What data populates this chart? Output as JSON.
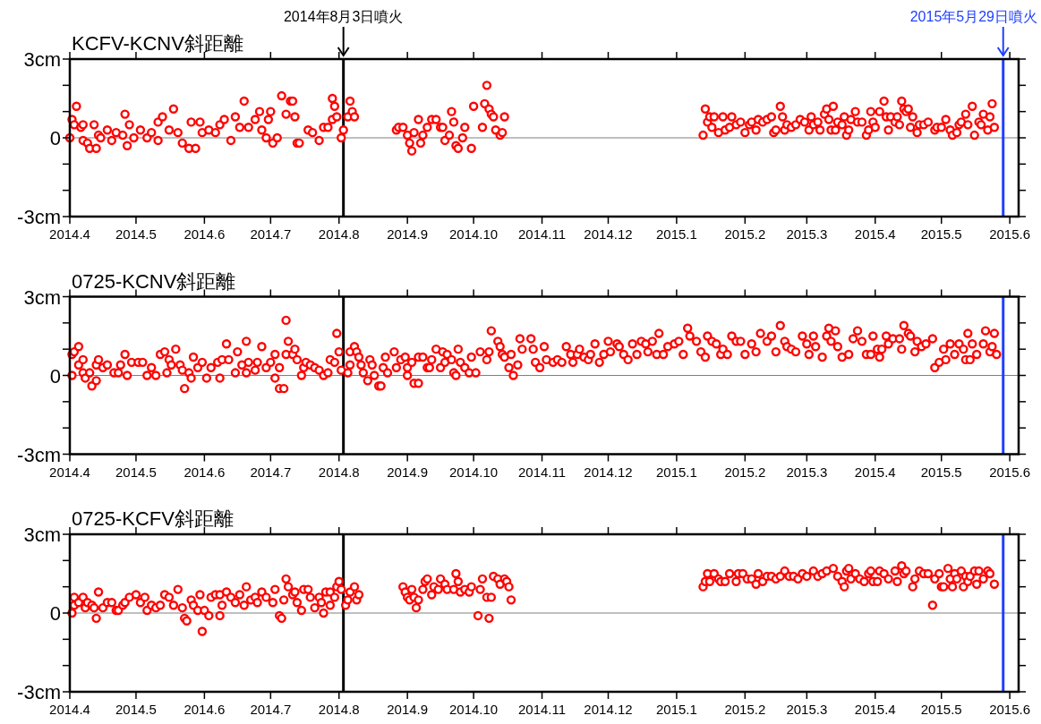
{
  "chart_data": [
    {
      "type": "scatter",
      "title": "KCFV-KCNV斜距離",
      "marker": "circle",
      "x": [
        "2014-04-01",
        "2014-04-02",
        "2014-04-03",
        "2014-04-04",
        "2014-04-06",
        "2014-04-07",
        "2014-04-07",
        "2014-04-09",
        "2014-04-10",
        "2014-04-12",
        "2014-04-13",
        "2014-04-14",
        "2014-04-15",
        "2014-04-18",
        "2014-04-20",
        "2014-04-22",
        "2014-04-25",
        "2014-04-26",
        "2014-04-27",
        "2014-04-28",
        "2014-04-30",
        "2014-05-03",
        "2014-05-06",
        "2014-05-08",
        "2014-05-11",
        "2014-05-11",
        "2014-05-13",
        "2014-05-16",
        "2014-05-18",
        "2014-05-20",
        "2014-05-22",
        "2014-05-25",
        "2014-05-26",
        "2014-05-28",
        "2014-05-30",
        "2014-05-31",
        "2014-06-03",
        "2014-06-06",
        "2014-06-08",
        "2014-06-10",
        "2014-06-13",
        "2014-06-15",
        "2014-06-17",
        "2014-06-19",
        "2014-06-21",
        "2014-06-24",
        "2014-06-26",
        "2014-06-27",
        "2014-06-29",
        "2014-06-30",
        "2014-07-01",
        "2014-07-02",
        "2014-07-04",
        "2014-07-06",
        "2014-07-08",
        "2014-07-10",
        "2014-07-11",
        "2014-07-12",
        "2014-07-13",
        "2014-07-14",
        "2014-07-18",
        "2014-07-20",
        "2014-07-23",
        "2014-07-25",
        "2014-07-27",
        "2014-07-29",
        "2014-07-29",
        "2014-07-30",
        "2014-07-31",
        "2014-08-02",
        "2014-08-03",
        "2014-08-05",
        "2014-08-06",
        "2014-08-07",
        "2014-08-08",
        "2014-08-27",
        "2014-08-28",
        "2014-08-30",
        "2014-09-01",
        "2014-09-02",
        "2014-09-03",
        "2014-09-04",
        "2014-09-06",
        "2014-09-07",
        "2014-09-08",
        "2014-09-10",
        "2014-09-12",
        "2014-09-14",
        "2014-09-16",
        "2014-09-17",
        "2014-09-18",
        "2014-09-20",
        "2014-09-21",
        "2014-09-22",
        "2014-09-23",
        "2014-09-24",
        "2014-09-26",
        "2014-09-27",
        "2014-09-30",
        "2014-10-01",
        "2014-10-05",
        "2014-10-06",
        "2014-10-07",
        "2014-10-08",
        "2014-10-09",
        "2014-10-10",
        "2014-10-11",
        "2014-10-13",
        "2014-10-14",
        "2014-10-15",
        "2015-01-13",
        "2015-01-14",
        "2015-01-15",
        "2015-01-16",
        "2015-01-17",
        "2015-01-18",
        "2015-01-20",
        "2015-01-22",
        "2015-01-23",
        "2015-01-25",
        "2015-01-26",
        "2015-01-28",
        "2015-01-30",
        "2015-02-01",
        "2015-02-03",
        "2015-02-04",
        "2015-02-06",
        "2015-02-07",
        "2015-02-09",
        "2015-02-11",
        "2015-02-13",
        "2015-02-14",
        "2015-02-15",
        "2015-02-17",
        "2015-02-18",
        "2015-02-19",
        "2015-02-20",
        "2015-02-22",
        "2015-02-24",
        "2015-02-26",
        "2015-02-28",
        "2015-03-02",
        "2015-03-03",
        "2015-03-04",
        "2015-03-06",
        "2015-03-07",
        "2015-03-09",
        "2015-03-10",
        "2015-03-11",
        "2015-03-12",
        "2015-03-13",
        "2015-03-14",
        "2015-03-15",
        "2015-03-17",
        "2015-03-18",
        "2015-03-19",
        "2015-03-20",
        "2015-03-21",
        "2015-03-23",
        "2015-03-24",
        "2015-03-26",
        "2015-03-28",
        "2015-03-29",
        "2015-03-30",
        "2015-03-31",
        "2015-04-01",
        "2015-04-03",
        "2015-04-05",
        "2015-04-06",
        "2015-04-07",
        "2015-04-08",
        "2015-04-10",
        "2015-04-11",
        "2015-04-12",
        "2015-04-13",
        "2015-04-14",
        "2015-04-15",
        "2015-04-16",
        "2015-04-17",
        "2015-04-18",
        "2015-04-20",
        "2015-04-21",
        "2015-04-23",
        "2015-04-25",
        "2015-04-28",
        "2015-04-29",
        "2015-05-01",
        "2015-05-03",
        "2015-05-05",
        "2015-05-06",
        "2015-05-08",
        "2015-05-09",
        "2015-05-10",
        "2015-05-12",
        "2015-05-13",
        "2015-05-15",
        "2015-05-16",
        "2015-05-18",
        "2015-05-19",
        "2015-05-20",
        "2015-05-22",
        "2015-05-23",
        "2015-05-24",
        "2015-05-25"
      ],
      "series": [
        {
          "color": "#ff0000",
          "values": [
            0.0,
            0.7,
            0.5,
            1.2,
            0.4,
            0.5,
            -0.1,
            -0.2,
            -0.4,
            0.5,
            -0.4,
            0.1,
            0.0,
            0.3,
            -0.1,
            0.2,
            0.1,
            0.9,
            -0.3,
            0.5,
            0.0,
            0.3,
            0.0,
            0.2,
            0.6,
            -0.1,
            0.8,
            0.3,
            1.1,
            0.2,
            -0.2,
            -0.4,
            0.6,
            -0.4,
            0.6,
            0.2,
            0.3,
            0.2,
            0.5,
            0.7,
            -0.1,
            0.8,
            0.4,
            1.4,
            0.4,
            0.7,
            1.0,
            0.3,
            0.0,
            0.7,
            1.0,
            -0.2,
            0.0,
            1.6,
            0.9,
            1.4,
            1.4,
            0.8,
            -0.2,
            -0.2,
            0.3,
            0.2,
            -0.1,
            0.4,
            0.4,
            0.7,
            1.5,
            1.2,
            0.8,
            0.0,
            0.3,
            0.8,
            1.4,
            1.0,
            0.8,
            0.3,
            0.4,
            0.4,
            0.1,
            -0.2,
            -0.5,
            0.2,
            0.7,
            -0.2,
            0.1,
            0.4,
            0.7,
            0.7,
            0.4,
            0.4,
            -0.1,
            0.1,
            1.0,
            0.6,
            -0.3,
            -0.4,
            0.0,
            0.4,
            -0.4,
            1.2,
            0.4,
            1.3,
            2.0,
            1.1,
            0.9,
            0.8,
            0.3,
            0.1,
            0.2,
            0.8,
            0.1,
            1.1,
            0.6,
            0.8,
            0.4,
            0.8,
            0.2,
            0.8,
            0.3,
            0.4,
            0.8,
            0.5,
            0.6,
            0.2,
            0.5,
            0.6,
            0.3,
            0.7,
            0.6,
            0.7,
            0.8,
            0.2,
            0.3,
            1.2,
            0.8,
            0.3,
            0.5,
            0.4,
            0.5,
            0.7,
            0.6,
            0.3,
            0.8,
            0.5,
            0.6,
            0.3,
            0.9,
            1.1,
            0.7,
            0.3,
            1.2,
            0.3,
            0.6,
            0.5,
            0.8,
            0.1,
            0.3,
            0.7,
            1.0,
            0.6,
            0.6,
            0.1,
            0.3,
            1.0,
            0.6,
            0.4,
            1.0,
            1.4,
            0.8,
            0.3,
            0.8,
            0.6,
            0.8,
            0.5,
            1.4,
            1.1,
            1.0,
            1.1,
            0.4,
            0.8,
            0.2,
            0.5,
            0.5,
            0.6,
            0.3,
            0.4,
            0.4,
            0.7,
            0.3,
            0.1,
            0.2,
            0.5,
            0.6,
            0.9,
            0.5,
            1.2,
            0.1,
            0.6,
            0.5,
            0.9,
            0.3,
            0.8,
            1.3,
            0.4
          ]
        }
      ],
      "xlim": [
        "2014-04-01",
        "2015-06-05"
      ],
      "xticks": [
        {
          "value": "2014-04-01",
          "label": "2014.4"
        },
        {
          "value": "2014-05-01",
          "label": "2014.5"
        },
        {
          "value": "2014-06-01",
          "label": "2014.6"
        },
        {
          "value": "2014-07-01",
          "label": "2014.7"
        },
        {
          "value": "2014-08-01",
          "label": "2014.8"
        },
        {
          "value": "2014-09-01",
          "label": "2014.9"
        },
        {
          "value": "2014-10-01",
          "label": "2014.10"
        },
        {
          "value": "2014-11-01",
          "label": "2014.11"
        },
        {
          "value": "2014-12-01",
          "label": "2014.12"
        },
        {
          "value": "2015-01-01",
          "label": "2015.1"
        },
        {
          "value": "2015-02-01",
          "label": "2015.2"
        },
        {
          "value": "2015-03-01",
          "label": "2015.3"
        },
        {
          "value": "2015-04-01",
          "label": "2015.4"
        },
        {
          "value": "2015-05-01",
          "label": "2015.5"
        },
        {
          "value": "2015-06-01",
          "label": "2015.6"
        }
      ],
      "ylim": [
        -3,
        3
      ],
      "yticks": [
        {
          "value": -3,
          "label": "-3cm"
        },
        {
          "value": -2,
          "label": null
        },
        {
          "value": -1,
          "label": null
        },
        {
          "value": 0,
          "label": "0"
        },
        {
          "value": 1,
          "label": null
        },
        {
          "value": 2,
          "label": null
        },
        {
          "value": 3,
          "label": "3cm"
        }
      ],
      "ref_lines": [
        {
          "axis": "y",
          "value": 0,
          "color": "#808080"
        },
        {
          "axis": "x",
          "value": "2014-08-03",
          "label": "2014年8月3日噴火",
          "color": "#000000"
        },
        {
          "axis": "x",
          "value": "2015-05-29",
          "label": "2015年5月29日噴火",
          "color": "#1f3fff"
        }
      ]
    },
    {
      "type": "scatter",
      "title": "0725-KCNV斜距離",
      "marker": "circle",
      "x": [
        "2014-04-02",
        "2014-04-02",
        "2014-04-03",
        "2014-04-05",
        "2014-04-05",
        "2014-04-07",
        "2014-04-07",
        "2014-04-08",
        "2014-04-10",
        "2014-04-11",
        "2014-04-13",
        "2014-04-13",
        "2014-04-14",
        "2014-04-16",
        "2014-04-18",
        "2014-04-21",
        "2014-04-23",
        "2014-04-24",
        "2014-04-26",
        "2014-04-27",
        "2014-04-29",
        "2014-05-02",
        "2014-05-04",
        "2014-05-06",
        "2014-05-08",
        "2014-05-10",
        "2014-05-12",
        "2014-05-14",
        "2014-05-15",
        "2014-05-16",
        "2014-05-17",
        "2014-05-19",
        "2014-05-21",
        "2014-05-22",
        "2014-05-23",
        "2014-05-25",
        "2014-05-26",
        "2014-05-27",
        "2014-05-29",
        "2014-05-31",
        "2014-06-02",
        "2014-06-04",
        "2014-06-07",
        "2014-06-08",
        "2014-06-09",
        "2014-06-11",
        "2014-06-12",
        "2014-06-15",
        "2014-06-16",
        "2014-06-18",
        "2014-06-20",
        "2014-06-20",
        "2014-06-21",
        "2014-06-24",
        "2014-06-25",
        "2014-06-27",
        "2014-06-29",
        "2014-07-01",
        "2014-07-03",
        "2014-07-03",
        "2014-07-05",
        "2014-07-05",
        "2014-07-07",
        "2014-07-08",
        "2014-07-08",
        "2014-07-09",
        "2014-07-11",
        "2014-07-12",
        "2014-07-13",
        "2014-07-15",
        "2014-07-16",
        "2014-07-17",
        "2014-07-19",
        "2014-07-21",
        "2014-07-23",
        "2014-07-25",
        "2014-07-27",
        "2014-07-28",
        "2014-07-30",
        "2014-07-31",
        "2014-08-01",
        "2014-08-02",
        "2014-08-05",
        "2014-08-06",
        "2014-08-06",
        "2014-08-08",
        "2014-08-09",
        "2014-08-10",
        "2014-08-11",
        "2014-08-12",
        "2014-08-14",
        "2014-08-15",
        "2014-08-16",
        "2014-08-17",
        "2014-08-19",
        "2014-08-20",
        "2014-08-21",
        "2014-08-22",
        "2014-08-23",
        "2014-08-26",
        "2014-08-27",
        "2014-08-29",
        "2014-08-31",
        "2014-09-01",
        "2014-09-01",
        "2014-09-03",
        "2014-09-04",
        "2014-09-06",
        "2014-09-06",
        "2014-09-08",
        "2014-09-10",
        "2014-09-11",
        "2014-09-12",
        "2014-09-14",
        "2014-09-16",
        "2014-09-17",
        "2014-09-18",
        "2014-09-19",
        "2014-09-21",
        "2014-09-22",
        "2014-09-23",
        "2014-09-24",
        "2014-09-25",
        "2014-09-27",
        "2014-09-29",
        "2014-09-30",
        "2014-10-02",
        "2014-10-04",
        "2014-10-07",
        "2014-10-08",
        "2014-10-09",
        "2014-10-12",
        "2014-10-13",
        "2014-10-14",
        "2014-10-15",
        "2014-10-17",
        "2014-10-18",
        "2014-10-19",
        "2014-10-21",
        "2014-10-22",
        "2014-10-23",
        "2014-10-27",
        "2014-10-28",
        "2014-10-29",
        "2014-10-31",
        "2014-11-02",
        "2014-11-03",
        "2014-11-06",
        "2014-11-08",
        "2014-11-10",
        "2014-11-12",
        "2014-11-14",
        "2014-11-15",
        "2014-11-17",
        "2014-11-18",
        "2014-11-20",
        "2014-11-22",
        "2014-11-23",
        "2014-11-25",
        "2014-11-27",
        "2014-11-29",
        "2014-12-01",
        "2014-12-02",
        "2014-12-05",
        "2014-12-06",
        "2014-12-08",
        "2014-12-10",
        "2014-12-12",
        "2014-12-14",
        "2014-12-16",
        "2014-12-18",
        "2014-12-19",
        "2014-12-21",
        "2014-12-23",
        "2014-12-24",
        "2014-12-26",
        "2014-12-28",
        "2014-12-31",
        "2015-01-02",
        "2015-01-04",
        "2015-01-06",
        "2015-01-07",
        "2015-01-10",
        "2015-01-12",
        "2015-01-14",
        "2015-01-15",
        "2015-01-17",
        "2015-01-19",
        "2015-01-21",
        "2015-01-22",
        "2015-01-24",
        "2015-01-26",
        "2015-01-28",
        "2015-01-30",
        "2015-02-01",
        "2015-02-04",
        "2015-02-06",
        "2015-02-08",
        "2015-02-11",
        "2015-02-13",
        "2015-02-15",
        "2015-02-17",
        "2015-02-19",
        "2015-02-20",
        "2015-02-22",
        "2015-02-24",
        "2015-02-27",
        "2015-03-01",
        "2015-03-02",
        "2015-03-04",
        "2015-03-05",
        "2015-03-08",
        "2015-03-10",
        "2015-03-11",
        "2015-03-12",
        "2015-03-14",
        "2015-03-15",
        "2015-03-17",
        "2015-03-20",
        "2015-03-22",
        "2015-03-24",
        "2015-03-26",
        "2015-03-28",
        "2015-03-30",
        "2015-03-31",
        "2015-04-02",
        "2015-04-03",
        "2015-04-04",
        "2015-04-06",
        "2015-04-07",
        "2015-04-09",
        "2015-04-12",
        "2015-04-13",
        "2015-04-14",
        "2015-04-16",
        "2015-04-17",
        "2015-04-19",
        "2015-04-20",
        "2015-04-22",
        "2015-04-24",
        "2015-04-27",
        "2015-04-28",
        "2015-04-30",
        "2015-05-02",
        "2015-05-03",
        "2015-05-05",
        "2015-05-07",
        "2015-05-09",
        "2015-05-11",
        "2015-05-12",
        "2015-05-13",
        "2015-05-14",
        "2015-05-15",
        "2015-05-17",
        "2015-05-20",
        "2015-05-21",
        "2015-05-23",
        "2015-05-24",
        "2015-05-25",
        "2015-05-26"
      ],
      "series": [
        {
          "color": "#ff0000",
          "values": [
            0.0,
            0.8,
            0.9,
            1.1,
            0.4,
            0.6,
            0.1,
            -0.1,
            0.1,
            -0.4,
            0.4,
            -0.2,
            0.6,
            0.3,
            0.4,
            0.1,
            0.1,
            0.4,
            0.8,
            0.0,
            0.5,
            0.5,
            0.5,
            0.0,
            0.3,
            0.0,
            0.8,
            0.9,
            0.1,
            0.6,
            0.4,
            1.0,
            0.4,
            0.2,
            -0.5,
            0.1,
            -0.1,
            0.7,
            0.3,
            0.5,
            -0.1,
            0.3,
            0.5,
            -0.1,
            0.6,
            1.2,
            0.6,
            0.1,
            0.9,
            0.4,
            0.1,
            1.3,
            0.5,
            0.2,
            0.5,
            1.1,
            0.3,
            0.5,
            0.8,
            -0.1,
            0.3,
            -0.5,
            -0.5,
            2.1,
            0.8,
            1.3,
            0.8,
            1.0,
            0.6,
            0.0,
            0.3,
            0.5,
            0.4,
            0.3,
            0.2,
            0.0,
            0.1,
            0.6,
            0.5,
            1.6,
            0.9,
            0.2,
            0.1,
            0.4,
            0.9,
            1.1,
            0.9,
            0.7,
            0.4,
            0.1,
            -0.2,
            0.6,
            0.4,
            0.0,
            -0.4,
            -0.4,
            0.3,
            0.7,
            0.1,
            0.9,
            0.3,
            0.6,
            0.7,
            0.0,
            0.3,
            0.5,
            -0.3,
            -0.3,
            0.7,
            0.7,
            0.3,
            0.3,
            0.6,
            1.0,
            0.3,
            0.9,
            0.5,
            0.8,
            0.6,
            0.1,
            0.0,
            1.0,
            0.5,
            0.3,
            0.1,
            0.7,
            0.1,
            0.9,
            0.6,
            0.9,
            1.7,
            1.3,
            1.1,
            0.8,
            0.7,
            0.3,
            0.8,
            0.0,
            0.4,
            1.4,
            1.0,
            1.4,
            1.0,
            0.5,
            0.3,
            1.1,
            0.6,
            0.5,
            0.6,
            0.5,
            1.1,
            0.8,
            0.5,
            0.8,
            1.0,
            0.7,
            0.6,
            0.8,
            1.2,
            0.5,
            0.8,
            1.3,
            0.9,
            1.2,
            1.1,
            0.8,
            0.6,
            1.2,
            0.8,
            1.3,
            1.2,
            0.9,
            1.3,
            0.8,
            1.6,
            0.8,
            1.1,
            1.2,
            1.3,
            0.8,
            1.8,
            1.5,
            1.3,
            0.9,
            0.7,
            1.5,
            1.3,
            1.2,
            0.8,
            1.0,
            0.8,
            1.5,
            1.3,
            1.3,
            0.8,
            1.2,
            0.9,
            1.6,
            1.3,
            1.5,
            0.9,
            1.9,
            1.3,
            1.1,
            1.0,
            0.9,
            1.5,
            1.2,
            0.8,
            1.5,
            1.1,
            0.7,
            1.5,
            1.8,
            1.3,
            1.7,
            1.1,
            0.7,
            0.8,
            1.4,
            1.7,
            1.3,
            0.8,
            0.8,
            1.5,
            1.0,
            0.7,
            1.0,
            1.5,
            1.2,
            1.4,
            1.4,
            1.0,
            1.9,
            1.6,
            1.5,
            0.9,
            1.3,
            1.1,
            1.2,
            1.4,
            0.3,
            0.5,
            1.0,
            0.6,
            1.2,
            0.8,
            1.2,
            1.0,
            0.6,
            1.6,
            0.6,
            1.2,
            0.8,
            1.2,
            1.7,
            0.9,
            1.1,
            1.6,
            0.8
          ]
        }
      ],
      "xlim": [
        "2014-04-01",
        "2015-06-05"
      ],
      "xticks": [
        {
          "value": "2014-04-01",
          "label": "2014.4"
        },
        {
          "value": "2014-05-01",
          "label": "2014.5"
        },
        {
          "value": "2014-06-01",
          "label": "2014.6"
        },
        {
          "value": "2014-07-01",
          "label": "2014.7"
        },
        {
          "value": "2014-08-01",
          "label": "2014.8"
        },
        {
          "value": "2014-09-01",
          "label": "2014.9"
        },
        {
          "value": "2014-10-01",
          "label": "2014.10"
        },
        {
          "value": "2014-11-01",
          "label": "2014.11"
        },
        {
          "value": "2014-12-01",
          "label": "2014.12"
        },
        {
          "value": "2015-01-01",
          "label": "2015.1"
        },
        {
          "value": "2015-02-01",
          "label": "2015.2"
        },
        {
          "value": "2015-03-01",
          "label": "2015.3"
        },
        {
          "value": "2015-04-01",
          "label": "2015.4"
        },
        {
          "value": "2015-05-01",
          "label": "2015.5"
        },
        {
          "value": "2015-06-01",
          "label": "2015.6"
        }
      ],
      "ylim": [
        -3,
        3
      ],
      "yticks": [
        {
          "value": -3,
          "label": "-3cm"
        },
        {
          "value": -2,
          "label": null
        },
        {
          "value": -1,
          "label": null
        },
        {
          "value": 0,
          "label": "0"
        },
        {
          "value": 1,
          "label": null
        },
        {
          "value": 2,
          "label": null
        },
        {
          "value": 3,
          "label": "3cm"
        }
      ],
      "ref_lines": [
        {
          "axis": "y",
          "value": 0,
          "color": "#808080"
        },
        {
          "axis": "x",
          "value": "2014-08-03",
          "color": "#000000"
        },
        {
          "axis": "x",
          "value": "2015-05-29",
          "color": "#1f3fff"
        }
      ]
    },
    {
      "type": "scatter",
      "title": "0725-KCFV斜距離",
      "marker": "circle",
      "x": [
        "2014-04-02",
        "2014-04-03",
        "2014-04-03",
        "2014-04-05",
        "2014-04-07",
        "2014-04-08",
        "2014-04-09",
        "2014-04-11",
        "2014-04-12",
        "2014-04-13",
        "2014-04-14",
        "2014-04-16",
        "2014-04-18",
        "2014-04-20",
        "2014-04-22",
        "2014-04-23",
        "2014-04-25",
        "2014-04-26",
        "2014-04-28",
        "2014-05-01",
        "2014-05-03",
        "2014-05-05",
        "2014-05-06",
        "2014-05-08",
        "2014-05-10",
        "2014-05-12",
        "2014-05-14",
        "2014-05-16",
        "2014-05-18",
        "2014-05-20",
        "2014-05-22",
        "2014-05-23",
        "2014-05-24",
        "2014-05-26",
        "2014-05-27",
        "2014-05-29",
        "2014-05-30",
        "2014-05-31",
        "2014-06-01",
        "2014-06-03",
        "2014-06-04",
        "2014-06-06",
        "2014-06-08",
        "2014-06-08",
        "2014-06-09",
        "2014-06-11",
        "2014-06-13",
        "2014-06-15",
        "2014-06-17",
        "2014-06-19",
        "2014-06-20",
        "2014-06-22",
        "2014-06-24",
        "2014-06-25",
        "2014-06-27",
        "2014-06-29",
        "2014-07-02",
        "2014-07-03",
        "2014-07-05",
        "2014-07-06",
        "2014-07-07",
        "2014-07-08",
        "2014-07-09",
        "2014-07-11",
        "2014-07-12",
        "2014-07-13",
        "2014-07-15",
        "2014-07-16",
        "2014-07-18",
        "2014-07-19",
        "2014-07-21",
        "2014-07-23",
        "2014-07-24",
        "2014-07-25",
        "2014-07-26",
        "2014-07-28",
        "2014-07-28",
        "2014-07-30",
        "2014-07-31",
        "2014-08-01",
        "2014-08-02",
        "2014-08-04",
        "2014-08-05",
        "2014-08-06",
        "2014-08-08",
        "2014-08-09",
        "2014-08-10",
        "2014-08-30",
        "2014-08-31",
        "2014-09-01",
        "2014-09-02",
        "2014-09-03",
        "2014-09-04",
        "2014-09-05",
        "2014-09-06",
        "2014-09-08",
        "2014-09-09",
        "2014-09-10",
        "2014-09-12",
        "2014-09-13",
        "2014-09-15",
        "2014-09-16",
        "2014-09-18",
        "2014-09-19",
        "2014-09-22",
        "2014-09-23",
        "2014-09-24",
        "2014-09-25",
        "2014-09-27",
        "2014-09-29",
        "2014-09-30",
        "2014-10-03",
        "2014-10-04",
        "2014-10-05",
        "2014-10-07",
        "2014-10-08",
        "2014-10-09",
        "2014-10-10",
        "2014-10-12",
        "2014-10-13",
        "2014-10-15",
        "2014-10-16",
        "2014-10-17",
        "2014-10-18",
        "2015-01-13",
        "2015-01-14",
        "2015-01-15",
        "2015-01-16",
        "2015-01-18",
        "2015-01-20",
        "2015-01-21",
        "2015-01-23",
        "2015-01-25",
        "2015-01-28",
        "2015-01-29",
        "2015-01-31",
        "2015-02-02",
        "2015-02-04",
        "2015-02-06",
        "2015-02-07",
        "2015-02-09",
        "2015-02-11",
        "2015-02-13",
        "2015-02-15",
        "2015-02-17",
        "2015-02-19",
        "2015-02-21",
        "2015-02-23",
        "2015-02-25",
        "2015-02-27",
        "2015-03-01",
        "2015-03-04",
        "2015-03-06",
        "2015-03-08",
        "2015-03-10",
        "2015-03-13",
        "2015-03-15",
        "2015-03-17",
        "2015-03-18",
        "2015-03-19",
        "2015-03-20",
        "2015-03-21",
        "2015-03-23",
        "2015-03-25",
        "2015-03-27",
        "2015-03-29",
        "2015-03-30",
        "2015-03-31",
        "2015-04-02",
        "2015-04-03",
        "2015-04-05",
        "2015-04-07",
        "2015-04-10",
        "2015-04-11",
        "2015-04-13",
        "2015-04-14",
        "2015-04-15",
        "2015-04-18",
        "2015-04-19",
        "2015-04-21",
        "2015-04-23",
        "2015-04-25",
        "2015-04-27",
        "2015-04-28",
        "2015-04-30",
        "2015-05-01",
        "2015-05-02",
        "2015-05-04",
        "2015-05-05",
        "2015-05-06",
        "2015-05-07",
        "2015-05-08",
        "2015-05-10",
        "2015-05-11",
        "2015-05-12",
        "2015-05-13",
        "2015-05-14",
        "2015-05-16",
        "2015-05-17",
        "2015-05-18",
        "2015-05-20",
        "2015-05-22",
        "2015-05-23",
        "2015-05-25"
      ],
      "series": [
        {
          "color": "#ff0000",
          "values": [
            0.0,
            0.3,
            0.6,
            0.4,
            0.6,
            0.2,
            0.4,
            0.3,
            0.2,
            -0.2,
            0.8,
            0.2,
            0.4,
            0.4,
            0.1,
            0.1,
            0.3,
            0.4,
            0.6,
            0.7,
            0.4,
            0.6,
            0.1,
            0.3,
            0.2,
            0.3,
            0.7,
            0.6,
            0.3,
            0.9,
            0.2,
            -0.2,
            -0.3,
            0.5,
            0.3,
            0.1,
            0.7,
            -0.7,
            0.1,
            -0.1,
            0.6,
            0.7,
            0.7,
            -0.1,
            0.3,
            0.8,
            0.6,
            0.4,
            0.7,
            0.3,
            1.0,
            0.5,
            0.6,
            0.4,
            0.8,
            0.6,
            0.4,
            0.9,
            -0.1,
            -0.2,
            0.5,
            1.3,
            1.0,
            0.7,
            0.8,
            0.4,
            0.1,
            0.9,
            0.9,
            0.6,
            0.2,
            0.6,
            0.4,
            0.0,
            0.8,
            0.8,
            0.3,
            0.6,
            1.0,
            1.2,
            0.9,
            0.3,
            0.5,
            0.8,
            1.0,
            0.5,
            0.7,
            1.0,
            0.8,
            0.6,
            0.5,
            0.9,
            0.6,
            0.2,
            0.5,
            0.9,
            1.2,
            1.3,
            0.7,
            1.0,
            0.9,
            1.3,
            1.1,
            0.9,
            0.9,
            1.5,
            1.2,
            0.8,
            0.9,
            0.8,
            1.0,
            -0.1,
            0.9,
            1.3,
            0.6,
            -0.2,
            0.6,
            1.4,
            1.3,
            1.1,
            1.3,
            1.2,
            1.0,
            0.5,
            1.0,
            1.2,
            1.5,
            1.2,
            1.5,
            1.3,
            1.2,
            1.2,
            1.5,
            1.2,
            1.5,
            1.5,
            1.3,
            1.3,
            1.1,
            1.5,
            1.2,
            1.4,
            1.4,
            1.3,
            1.4,
            1.6,
            1.4,
            1.4,
            1.3,
            1.5,
            1.4,
            1.6,
            1.4,
            1.5,
            1.6,
            1.7,
            1.4,
            1.2,
            1.0,
            1.6,
            1.7,
            1.3,
            1.5,
            1.3,
            1.2,
            1.5,
            1.6,
            1.2,
            1.2,
            1.6,
            1.5,
            1.3,
            1.6,
            1.2,
            1.8,
            1.5,
            1.6,
            1.0,
            1.3,
            1.6,
            1.5,
            1.5,
            0.3,
            1.3,
            1.5,
            1.0,
            1.0,
            1.7,
            1.3,
            1.0,
            1.5,
            1.3,
            1.6,
            1.0,
            1.4,
            1.2,
            1.4,
            1.6,
            1.1,
            1.6,
            1.3,
            1.6,
            1.5,
            1.1
          ]
        }
      ],
      "xlim": [
        "2014-04-01",
        "2015-06-05"
      ],
      "xticks": [
        {
          "value": "2014-04-01",
          "label": "2014.4"
        },
        {
          "value": "2014-05-01",
          "label": "2014.5"
        },
        {
          "value": "2014-06-01",
          "label": "2014.6"
        },
        {
          "value": "2014-07-01",
          "label": "2014.7"
        },
        {
          "value": "2014-08-01",
          "label": "2014.8"
        },
        {
          "value": "2014-09-01",
          "label": "2014.9"
        },
        {
          "value": "2014-10-01",
          "label": "2014.10"
        },
        {
          "value": "2014-11-01",
          "label": "2014.11"
        },
        {
          "value": "2014-12-01",
          "label": "2014.12"
        },
        {
          "value": "2015-01-01",
          "label": "2015.1"
        },
        {
          "value": "2015-02-01",
          "label": "2015.2"
        },
        {
          "value": "2015-03-01",
          "label": "2015.3"
        },
        {
          "value": "2015-04-01",
          "label": "2015.4"
        },
        {
          "value": "2015-05-01",
          "label": "2015.5"
        },
        {
          "value": "2015-06-01",
          "label": "2015.6"
        }
      ],
      "ylim": [
        -3,
        3
      ],
      "yticks": [
        {
          "value": -3,
          "label": "-3cm"
        },
        {
          "value": -2,
          "label": null
        },
        {
          "value": -1,
          "label": null
        },
        {
          "value": 0,
          "label": "0"
        },
        {
          "value": 1,
          "label": null
        },
        {
          "value": 2,
          "label": null
        },
        {
          "value": 3,
          "label": "3cm"
        }
      ],
      "ref_lines": [
        {
          "axis": "y",
          "value": 0,
          "color": "#808080"
        },
        {
          "axis": "x",
          "value": "2014-08-03",
          "color": "#000000"
        },
        {
          "axis": "x",
          "value": "2015-05-29",
          "color": "#1f3fff"
        }
      ]
    }
  ]
}
